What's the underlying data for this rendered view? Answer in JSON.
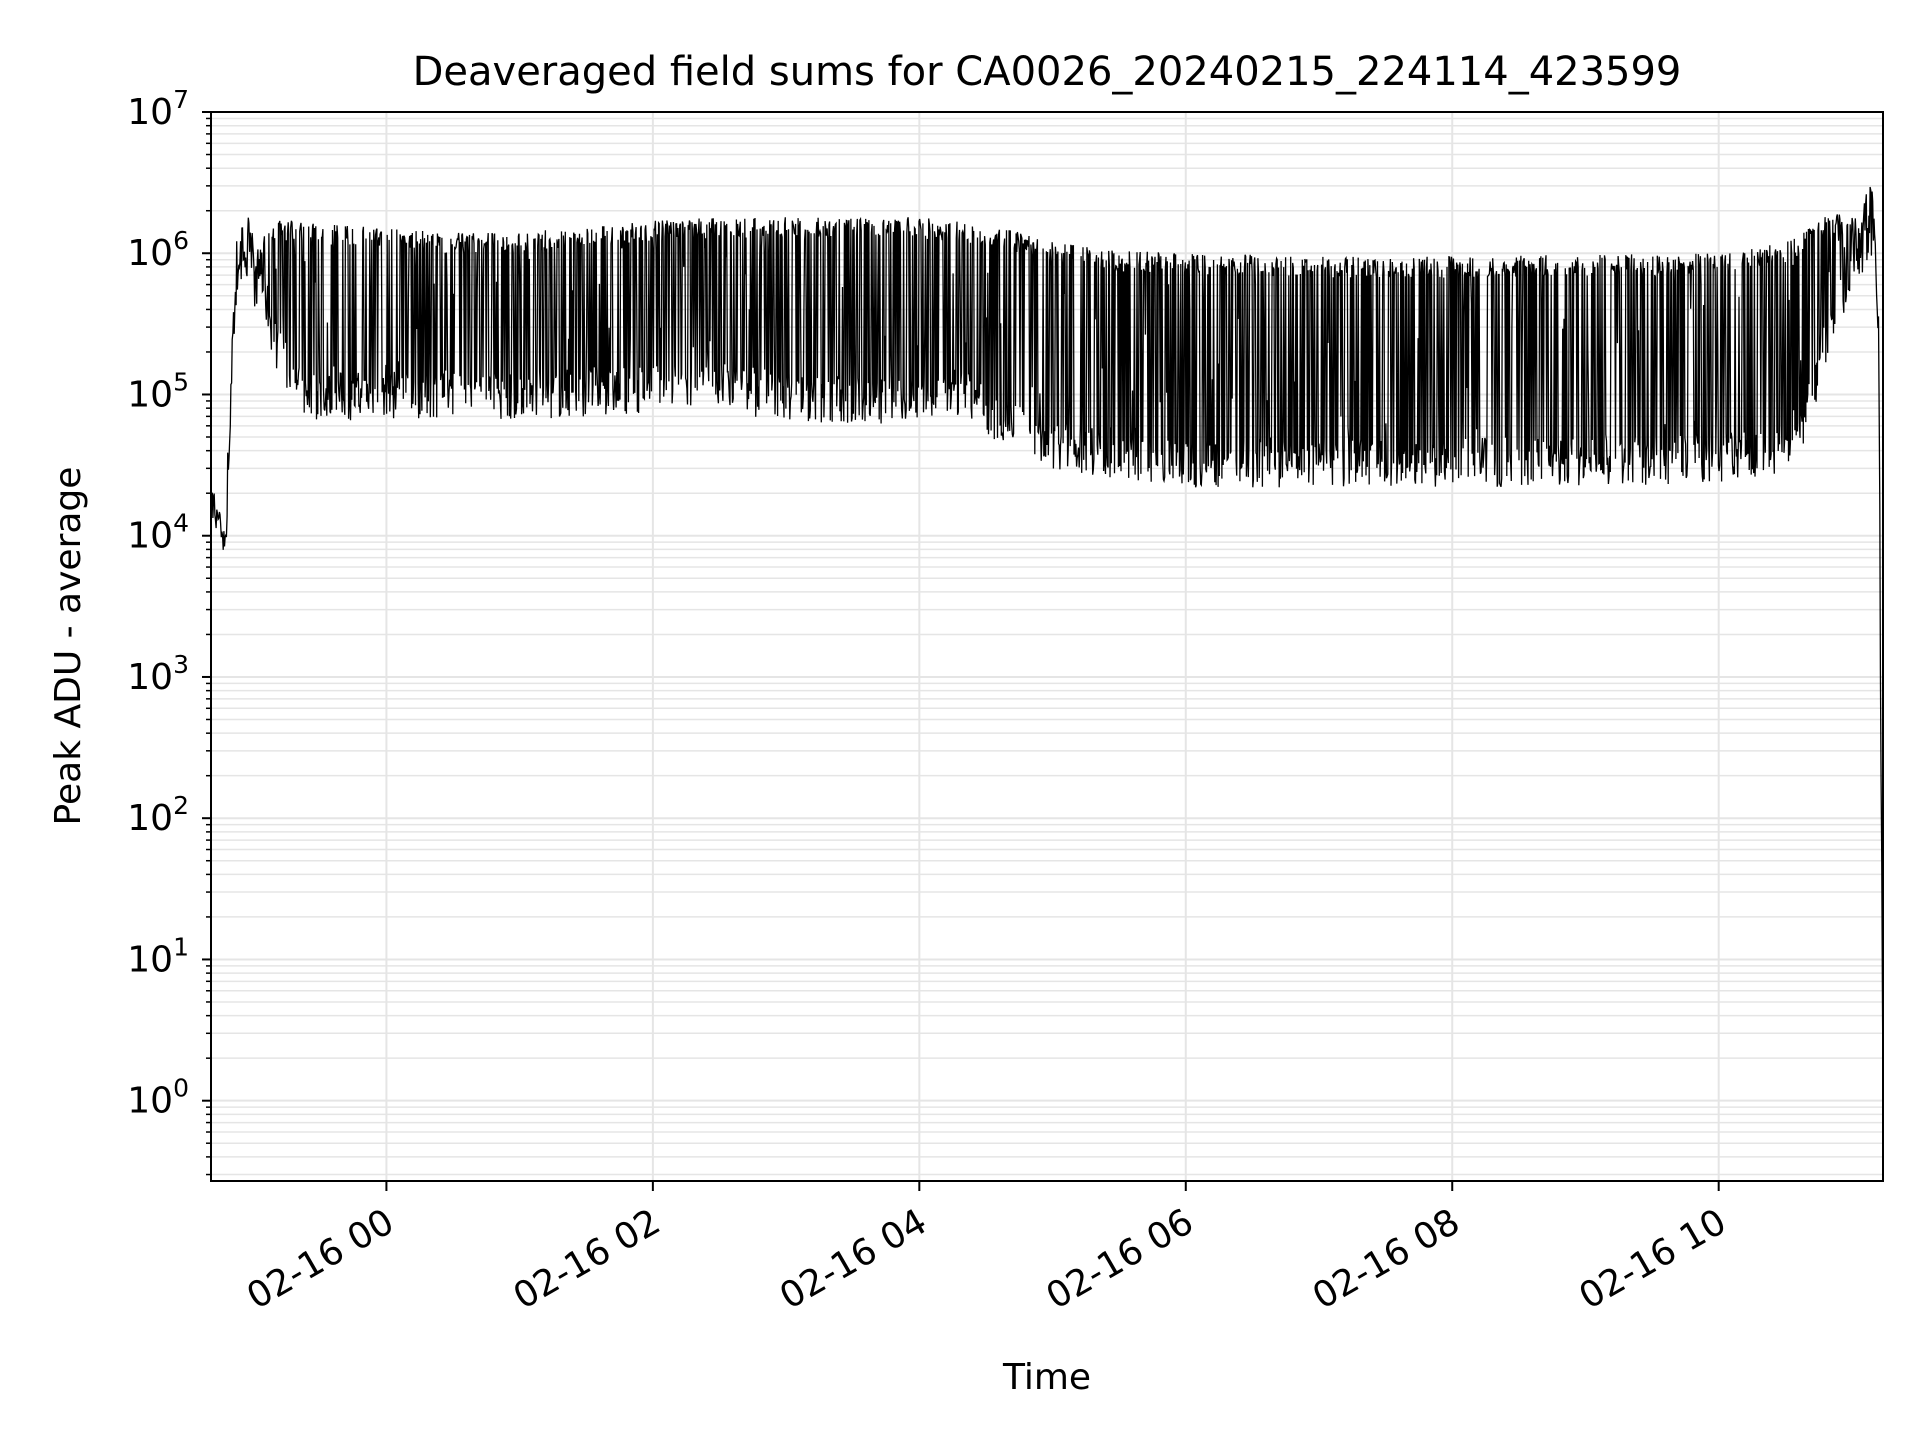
{
  "chart_data": {
    "type": "line",
    "title": "Deaveraged field sums for CA0026_20240215_224114_423599",
    "xlabel": "Time",
    "ylabel": "Peak ADU - average",
    "yscale": "log",
    "ylim": [
      0.27,
      10000000
    ],
    "xlim": [
      "2024-02-15 22:41",
      "2024-02-16 11:14"
    ],
    "grid": true,
    "legend": "none",
    "line_color": "#000000",
    "grid_color": "#e5e5e5",
    "x_ticks": [
      {
        "value": "2024-02-16 00:00",
        "label": "02-16 00"
      },
      {
        "value": "2024-02-16 02:00",
        "label": "02-16 02"
      },
      {
        "value": "2024-02-16 04:00",
        "label": "02-16 04"
      },
      {
        "value": "2024-02-16 06:00",
        "label": "02-16 06"
      },
      {
        "value": "2024-02-16 08:00",
        "label": "02-16 08"
      },
      {
        "value": "2024-02-16 10:00",
        "label": "02-16 10"
      }
    ],
    "y_ticks": [
      {
        "value": 1,
        "base": "10",
        "exp": "0"
      },
      {
        "value": 10,
        "base": "10",
        "exp": "1"
      },
      {
        "value": 100,
        "base": "10",
        "exp": "2"
      },
      {
        "value": 1000,
        "base": "10",
        "exp": "3"
      },
      {
        "value": 10000,
        "base": "10",
        "exp": "4"
      },
      {
        "value": 100000,
        "base": "10",
        "exp": "5"
      },
      {
        "value": 1000000,
        "base": "10",
        "exp": "6"
      },
      {
        "value": 10000000,
        "base": "10",
        "exp": "7"
      }
    ],
    "series": [
      {
        "x": [
          "2024-02-15 22:41",
          "2024-02-15 22:45",
          "2024-02-15 22:47",
          "2024-02-15 22:48",
          "2024-02-15 22:50",
          "2024-02-15 22:53",
          "2024-02-15 22:56",
          "2024-02-15 22:58",
          "2024-02-15 23:01",
          "2024-02-15 23:03",
          "2024-02-15 23:10",
          "2024-02-15 23:20",
          "2024-02-15 23:30",
          "2024-02-15 23:40",
          "2024-02-16 00:00",
          "2024-02-16 00:30",
          "2024-02-16 01:00",
          "2024-02-16 01:30",
          "2024-02-16 02:00",
          "2024-02-16 02:30",
          "2024-02-16 03:00",
          "2024-02-16 03:30",
          "2024-02-16 04:00",
          "2024-02-16 04:20",
          "2024-02-16 04:40",
          "2024-02-16 05:00",
          "2024-02-16 05:30",
          "2024-02-16 06:00",
          "2024-02-16 07:00",
          "2024-02-16 08:00",
          "2024-02-16 09:00",
          "2024-02-16 10:00",
          "2024-02-16 10:30",
          "2024-02-16 10:40",
          "2024-02-16 10:50",
          "2024-02-16 11:00",
          "2024-02-16 11:05",
          "2024-02-16 11:08",
          "2024-02-16 11:10",
          "2024-02-16 11:12",
          "2024-02-16 11:14"
        ],
        "envelope_high": [
          18000,
          15000,
          9000,
          12000,
          100000,
          800000,
          1000000,
          2300000,
          1000000,
          1200000,
          1700000,
          1700000,
          1600000,
          1600000,
          1500000,
          1400000,
          1400000,
          1600000,
          1700000,
          1800000,
          1800000,
          1800000,
          1800000,
          1700000,
          1500000,
          1200000,
          1050000,
          1000000,
          950000,
          950000,
          980000,
          1000000,
          1200000,
          1500000,
          2000000,
          1800000,
          2000000,
          4500000,
          2000000,
          300000,
          0.6
        ],
        "envelope_low": [
          14000,
          9000,
          5000,
          10000,
          100000,
          800000,
          700000,
          500000,
          400000,
          500000,
          150000,
          70000,
          65000,
          65000,
          65000,
          70000,
          65000,
          70000,
          75000,
          75000,
          65000,
          60000,
          60000,
          70000,
          40000,
          30000,
          25000,
          22000,
          22000,
          22000,
          22000,
          24000,
          28000,
          50000,
          200000,
          500000,
          700000,
          900000,
          1000000,
          300000,
          0.6
        ]
      }
    ]
  }
}
